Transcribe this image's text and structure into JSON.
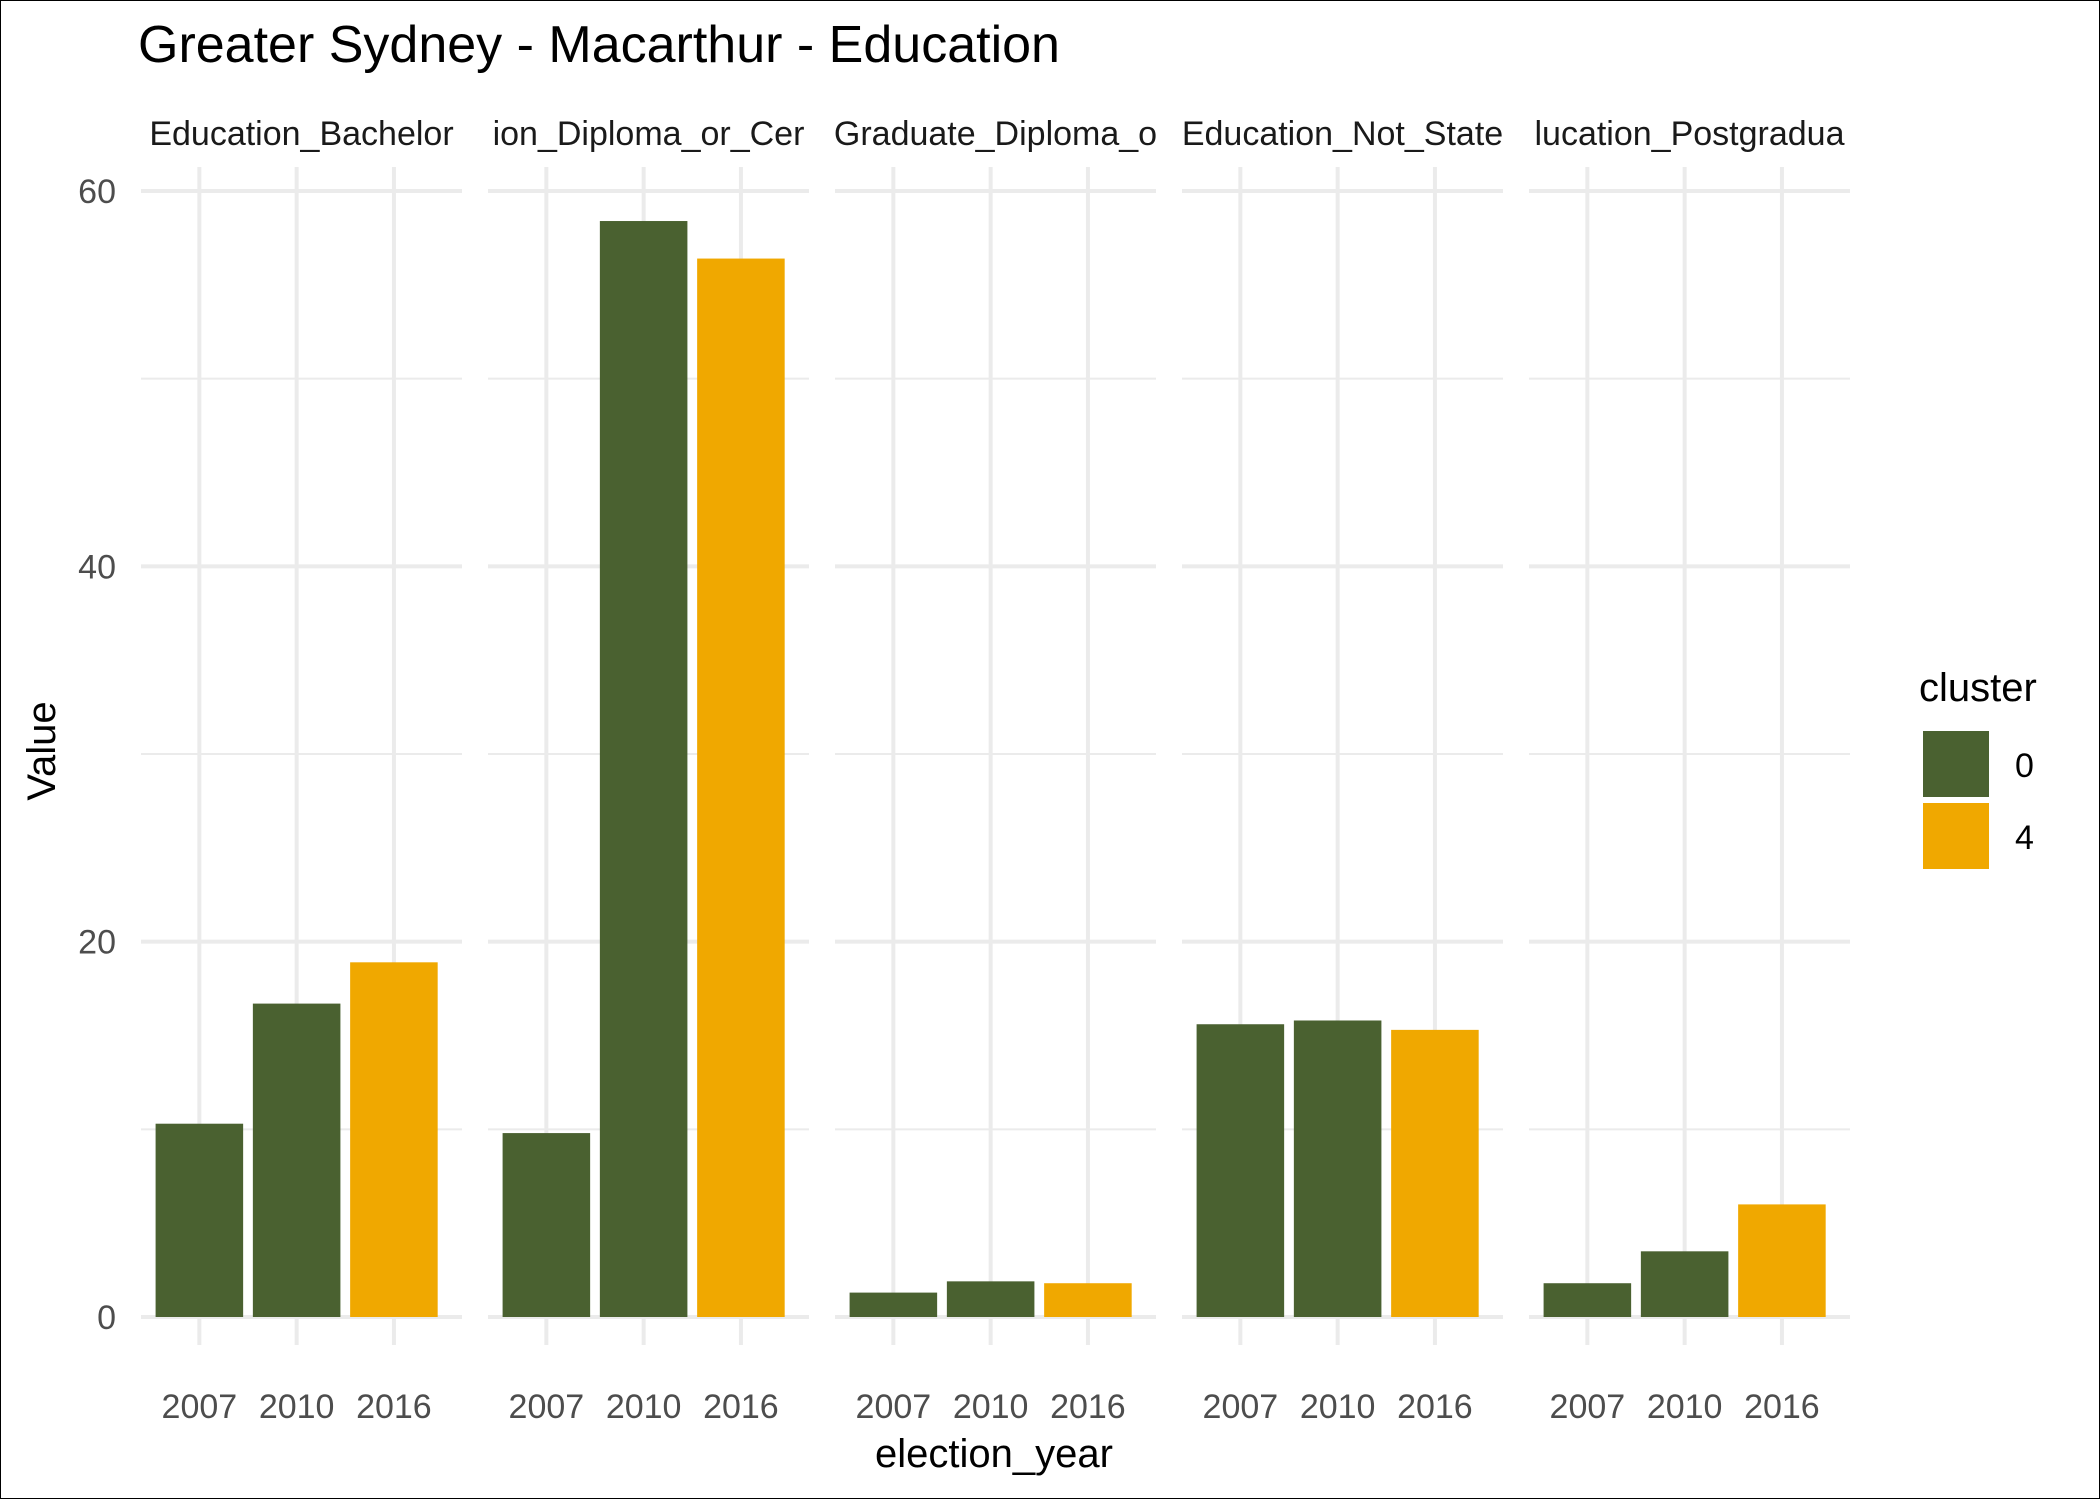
{
  "chart_data": {
    "type": "bar",
    "title": "Greater Sydney - Macarthur - Education",
    "xlabel": "election_year",
    "ylabel": "Value",
    "ylim": [
      0,
      60
    ],
    "y_ticks": [
      0,
      20,
      40,
      60
    ],
    "grid": true,
    "legend": {
      "title": "cluster",
      "position": "right",
      "entries": [
        {
          "label": "0",
          "color": "#4a6130"
        },
        {
          "label": "4",
          "color": "#f0a800"
        }
      ]
    },
    "categories": [
      "2007",
      "2010",
      "2016"
    ],
    "panels": [
      {
        "label": "Education_Bachelor",
        "values": [
          10.3,
          16.7,
          18.9
        ],
        "clusters": [
          "0",
          "0",
          "4"
        ]
      },
      {
        "label": "ion_Diploma_or_Cer",
        "values": [
          9.8,
          58.4,
          56.4
        ],
        "clusters": [
          "0",
          "0",
          "4"
        ]
      },
      {
        "label": "Graduate_Diploma_o",
        "values": [
          1.3,
          1.9,
          1.8
        ],
        "clusters": [
          "0",
          "0",
          "4"
        ]
      },
      {
        "label": "Education_Not_State",
        "values": [
          15.6,
          15.8,
          15.3
        ],
        "clusters": [
          "0",
          "0",
          "4"
        ]
      },
      {
        "label": "lucation_Postgradua",
        "values": [
          1.8,
          3.5,
          6.0
        ],
        "clusters": [
          "0",
          "0",
          "4"
        ]
      }
    ]
  }
}
